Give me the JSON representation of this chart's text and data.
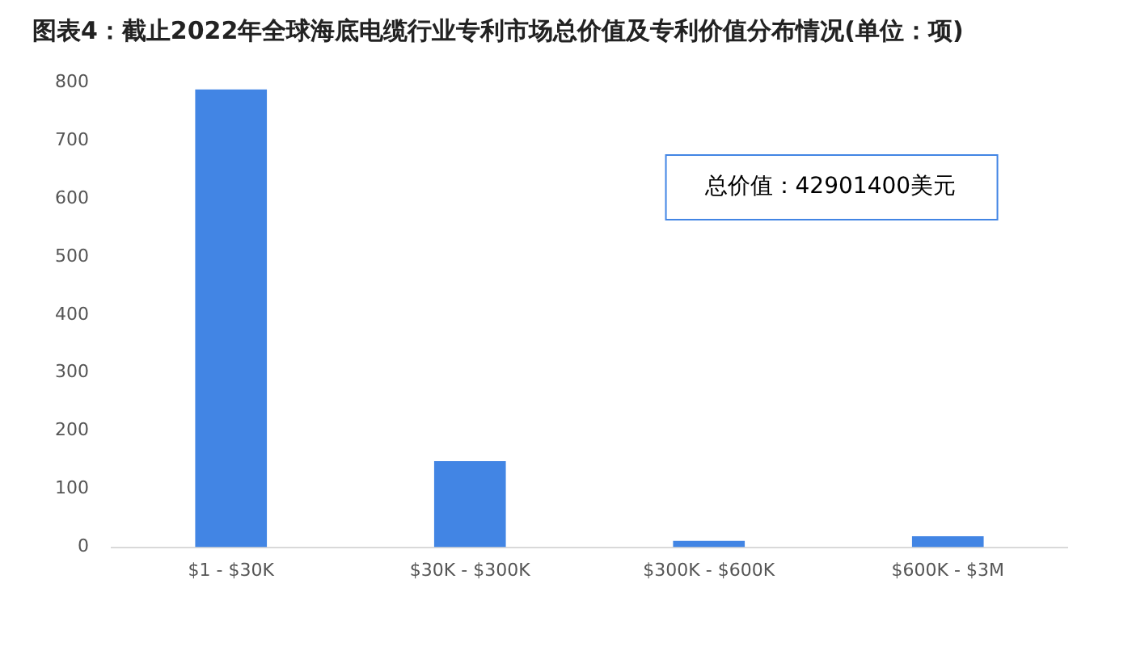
{
  "chart_data": {
    "type": "bar",
    "title": "图表4：截止2022年全球海底电缆行业专利市场总价值及专利价值分布情况(单位：项)",
    "categories": [
      "$1 - $30K",
      "$30K - $300K",
      "$300K - $600K",
      "$600K - $3M"
    ],
    "values": [
      788,
      148,
      11,
      19
    ],
    "color": "#4285e4",
    "ylim": [
      0,
      800
    ],
    "yticks": [
      0,
      100,
      200,
      300,
      400,
      500,
      600,
      700,
      800
    ],
    "grid": false,
    "annotations": [
      "总价值：42901400美元"
    ]
  }
}
